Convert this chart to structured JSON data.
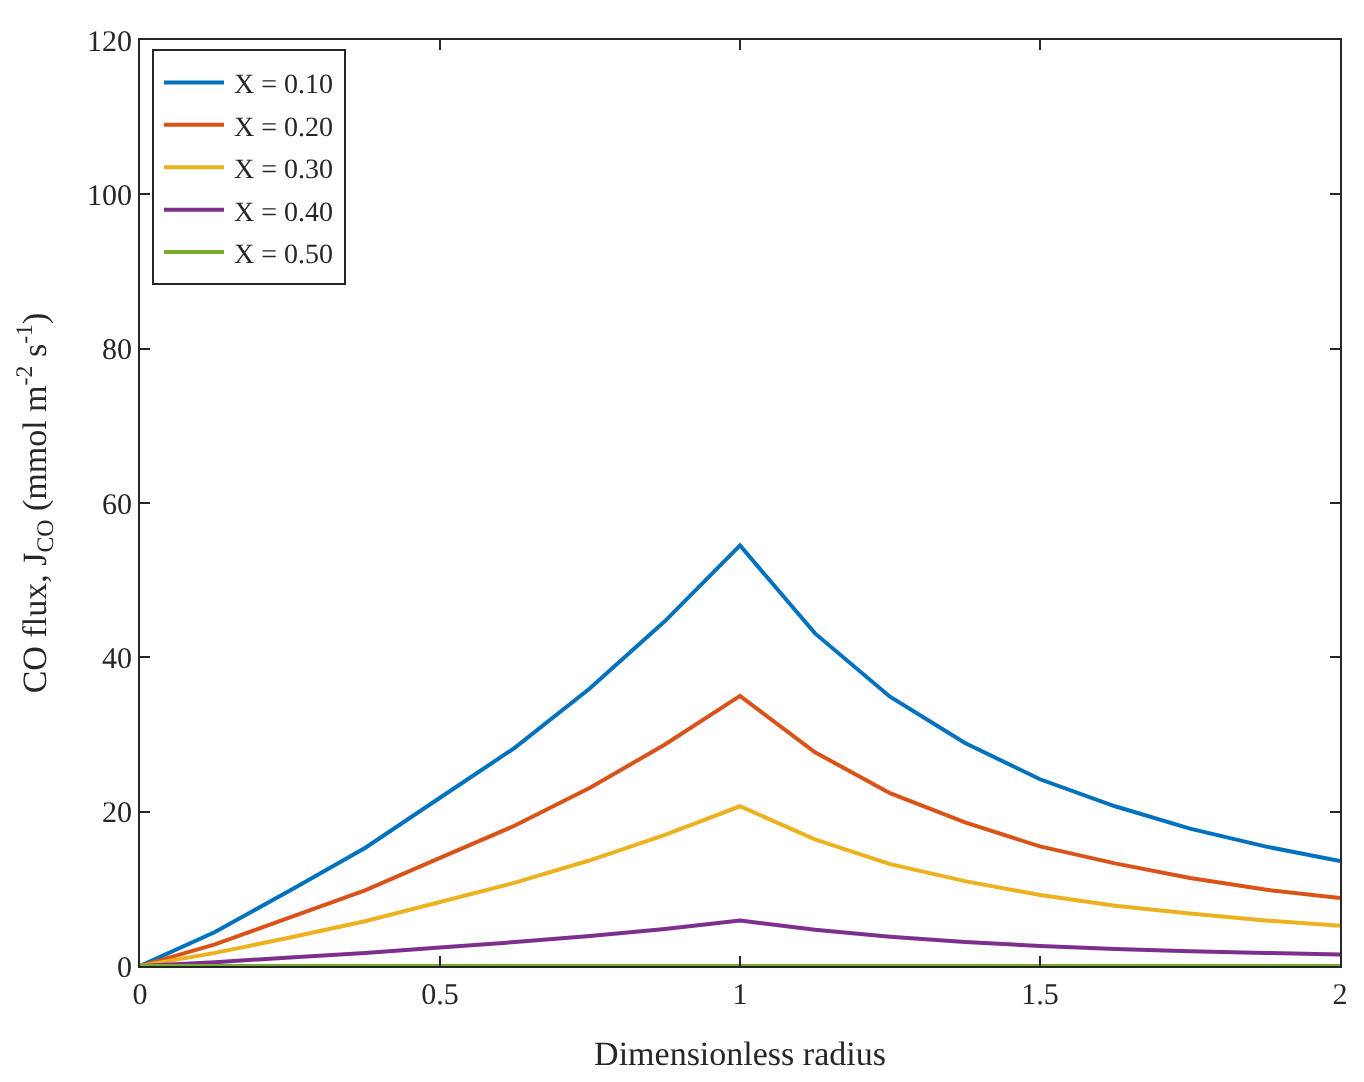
{
  "chart_data": {
    "type": "line",
    "xlabel": "Dimensionless radius",
    "ylabel": "CO flux, J$_{CO}$ (mmol m$^{-2}$ s$^{-1}$)",
    "x": [
      0,
      0.125,
      0.25,
      0.375,
      0.5,
      0.625,
      0.75,
      0.875,
      1,
      1.125,
      1.25,
      1.375,
      1.5,
      1.625,
      1.75,
      1.875,
      2
    ],
    "series": [
      {
        "name": "X = 0.10",
        "color": "#0072bd",
        "values": [
          0,
          4.4,
          9.8,
          15.3,
          21.8,
          28.3,
          36.0,
          44.7,
          54.5,
          43.1,
          34.9,
          28.9,
          24.2,
          20.7,
          17.8,
          15.5,
          13.6
        ]
      },
      {
        "name": "X = 0.20",
        "color": "#d95319",
        "values": [
          0,
          2.8,
          6.3,
          9.8,
          14.0,
          18.2,
          23.1,
          28.7,
          35.0,
          27.7,
          22.4,
          18.6,
          15.5,
          13.3,
          11.4,
          9.9,
          8.8
        ]
      },
      {
        "name": "X = 0.30",
        "color": "#edb120",
        "values": [
          0,
          1.7,
          3.7,
          5.8,
          8.3,
          10.8,
          13.7,
          17.0,
          20.7,
          16.4,
          13.2,
          11.0,
          9.2,
          7.8,
          6.8,
          5.9,
          5.2
        ]
      },
      {
        "name": "X = 0.40",
        "color": "#7e2f8e",
        "values": [
          0,
          0.5,
          1.1,
          1.7,
          2.4,
          3.1,
          3.9,
          4.8,
          5.9,
          4.7,
          3.8,
          3.1,
          2.6,
          2.2,
          1.9,
          1.7,
          1.5
        ]
      },
      {
        "name": "X = 0.50",
        "color": "#77ac30",
        "values": [
          0,
          0,
          0,
          0,
          0,
          0,
          0,
          0,
          0,
          0,
          0,
          0,
          0,
          0,
          0,
          0,
          0
        ]
      }
    ],
    "xlim": [
      0,
      2
    ],
    "xticks": [
      0,
      0.5,
      1,
      1.5,
      2
    ],
    "ylim": [
      0,
      120
    ],
    "yticks": [
      0,
      20,
      40,
      60,
      80,
      100,
      120
    ],
    "grid": false,
    "legend": "top left",
    "marker": "none",
    "line_style": "solid"
  }
}
